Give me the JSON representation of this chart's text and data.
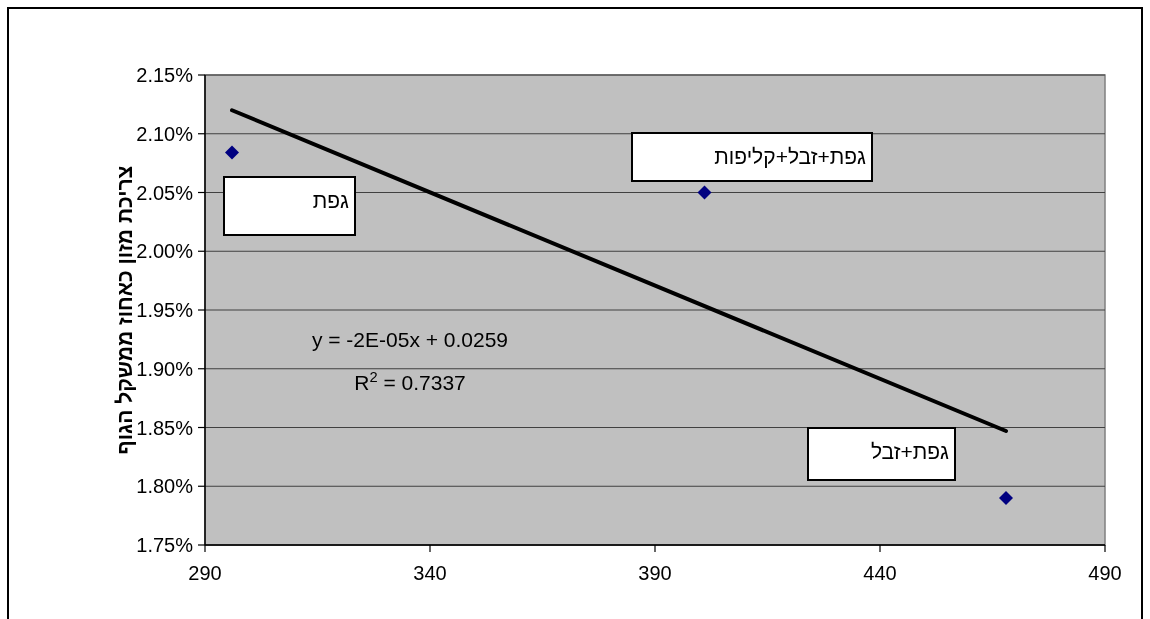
{
  "chart_data": {
    "type": "scatter",
    "ylabel": "צריכת מזון כאחוז ממשקל הגוף",
    "xlim": [
      290,
      490
    ],
    "xticks": [
      290,
      340,
      390,
      440,
      490
    ],
    "ylim": [
      1.75,
      2.15
    ],
    "yticks": [
      {
        "value": 1.75,
        "label": "1.75%"
      },
      {
        "value": 1.8,
        "label": "1.80%"
      },
      {
        "value": 1.85,
        "label": "1.85%"
      },
      {
        "value": 1.9,
        "label": "1.90%"
      },
      {
        "value": 1.95,
        "label": "1.95%"
      },
      {
        "value": 2.0,
        "label": "2.00%"
      },
      {
        "value": 2.05,
        "label": "2.05%"
      },
      {
        "value": 2.1,
        "label": "2.10%"
      },
      {
        "value": 2.15,
        "label": "2.15%"
      }
    ],
    "grid": "y",
    "marker": "diamond",
    "series": [
      {
        "color": "#000080",
        "x": [
          296,
          401,
          468
        ],
        "values": [
          2.084,
          2.05,
          1.79
        ]
      },
      {
        "type": "line",
        "marker": "none",
        "color": "#000000",
        "x": [
          296,
          468
        ],
        "values": [
          2.12,
          1.847
        ]
      }
    ],
    "annotations": [
      "y = -2E-05x + 0.0259",
      "R$^{2}$ = 0.7337",
      "גפת",
      "גפת+זבל+קליפות",
      "גפת+זבל"
    ]
  }
}
